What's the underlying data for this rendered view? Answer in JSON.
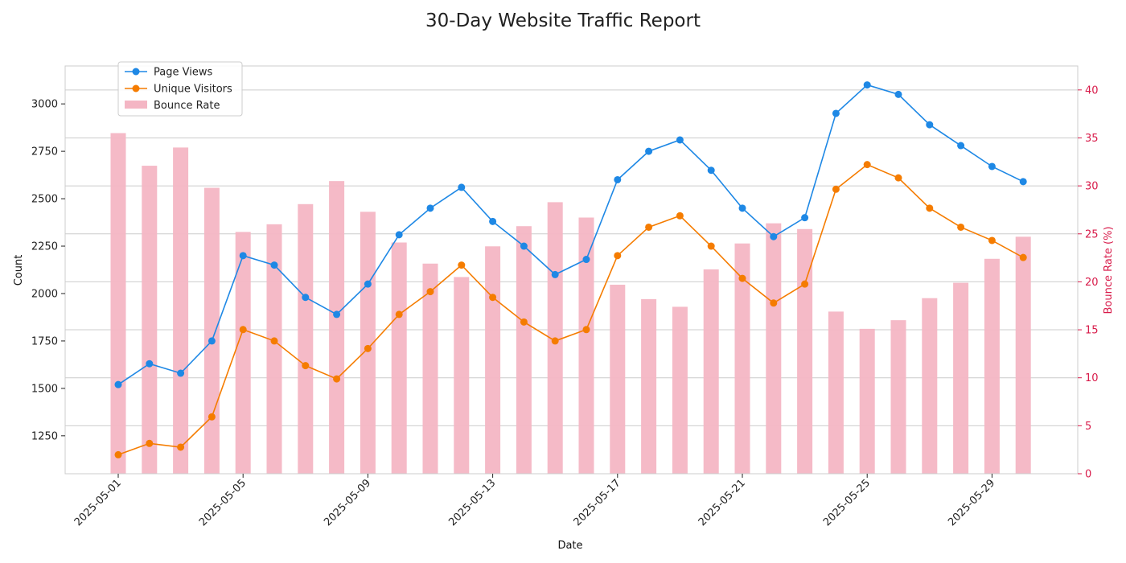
{
  "chart_data": {
    "type": "bar+line",
    "title": "30-Day Website Traffic Report",
    "xlabel": "Date",
    "ylabel": "Count",
    "y2label": "Bounce Rate (%)",
    "ylim": [
      1050,
      3200
    ],
    "y2lim": [
      0,
      42.5
    ],
    "yticks": [
      1250,
      1500,
      1750,
      2000,
      2250,
      2500,
      2750,
      3000
    ],
    "y2ticks": [
      0,
      5,
      10,
      15,
      20,
      25,
      30,
      35,
      40
    ],
    "xtick_labels": [
      "2025-05-01",
      "2025-05-05",
      "2025-05-09",
      "2025-05-13",
      "2025-05-17",
      "2025-05-21",
      "2025-05-25",
      "2025-05-29"
    ],
    "xtick_index": [
      0,
      4,
      8,
      12,
      16,
      20,
      24,
      28
    ],
    "grid": true,
    "legend_position": "top-left",
    "x": [
      "2025-05-01",
      "2025-05-02",
      "2025-05-03",
      "2025-05-04",
      "2025-05-05",
      "2025-05-06",
      "2025-05-07",
      "2025-05-08",
      "2025-05-09",
      "2025-05-10",
      "2025-05-11",
      "2025-05-12",
      "2025-05-13",
      "2025-05-14",
      "2025-05-15",
      "2025-05-16",
      "2025-05-17",
      "2025-05-18",
      "2025-05-19",
      "2025-05-20",
      "2025-05-21",
      "2025-05-22",
      "2025-05-23",
      "2025-05-24",
      "2025-05-25",
      "2025-05-26",
      "2025-05-27",
      "2025-05-28",
      "2025-05-29",
      "2025-05-30"
    ],
    "series": [
      {
        "name": "Page Views",
        "kind": "line",
        "axis": "left",
        "color": "#1e88e5",
        "values": [
          1520,
          1630,
          1580,
          1750,
          2200,
          2150,
          1980,
          1890,
          2050,
          2310,
          2450,
          2560,
          2380,
          2250,
          2100,
          2180,
          2600,
          2750,
          2810,
          2650,
          2450,
          2300,
          2400,
          2950,
          3100,
          3050,
          2890,
          2780,
          2670,
          2590
        ]
      },
      {
        "name": "Unique Visitors",
        "kind": "line",
        "axis": "left",
        "color": "#f57c00",
        "values": [
          1150,
          1210,
          1190,
          1350,
          1810,
          1750,
          1620,
          1550,
          1710,
          1890,
          2010,
          2150,
          1980,
          1850,
          1750,
          1810,
          2200,
          2350,
          2410,
          2250,
          2080,
          1950,
          2050,
          2550,
          2680,
          2610,
          2450,
          2350,
          2280,
          2190
        ]
      },
      {
        "name": "Bounce Rate",
        "kind": "bar",
        "axis": "right",
        "color": "#f4b6c4",
        "values": [
          35.5,
          32.1,
          34.0,
          29.8,
          25.2,
          26.0,
          28.1,
          30.5,
          27.3,
          24.1,
          21.9,
          20.5,
          23.7,
          25.8,
          28.3,
          26.7,
          19.7,
          18.2,
          17.4,
          21.3,
          24.0,
          26.1,
          25.5,
          16.9,
          15.1,
          16.0,
          18.3,
          19.9,
          22.4,
          24.7
        ]
      }
    ]
  }
}
